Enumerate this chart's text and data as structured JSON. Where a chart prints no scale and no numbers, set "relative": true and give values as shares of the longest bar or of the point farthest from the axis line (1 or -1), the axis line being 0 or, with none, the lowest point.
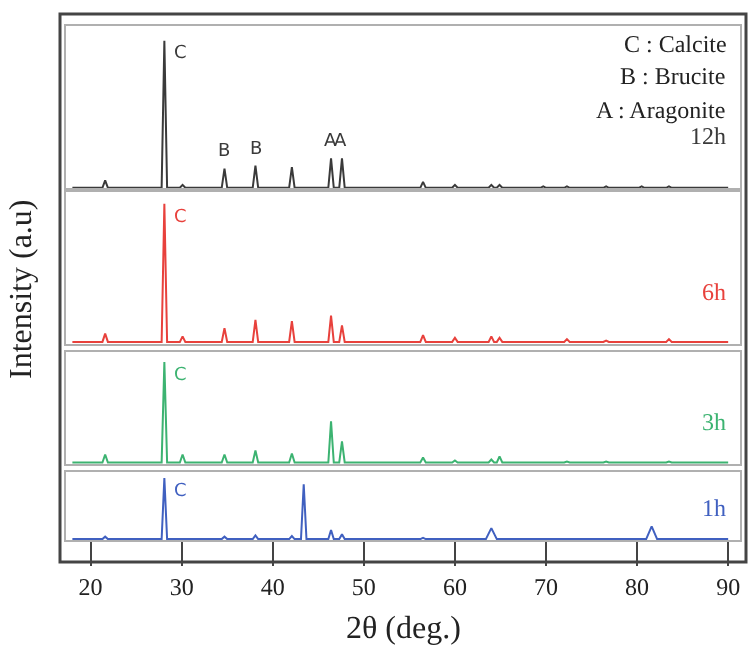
{
  "chart_data": [
    {
      "type": "line",
      "relative": true,
      "xlim": [
        17.3,
        91.3
      ],
      "tick_labels": false,
      "annotations": [
        "C : Calcite",
        "B : Brucite",
        "A : Aragonite",
        {
          "text": "C",
          "x": 28.1,
          "y": 1
        },
        {
          "text": "B",
          "x": 34.7,
          "y": 0.13
        },
        {
          "text": "B",
          "x": 38.1,
          "y": 0.15
        },
        {
          "text": "A",
          "x": 46.4,
          "y": 0.2
        },
        {
          "text": "A",
          "x": 47.6,
          "y": 0.2
        }
      ],
      "series": [
        {
          "name": "12h",
          "color": "#3a3a3a",
          "x": [
            18,
            21.3,
            21.6,
            21.9,
            27.8,
            28.1,
            28.4,
            29.8,
            30.1,
            30.4,
            34.4,
            34.7,
            35,
            37.8,
            38.1,
            38.4,
            41.8,
            42.1,
            42.4,
            46.1,
            46.4,
            46.7,
            47.3,
            47.6,
            47.9,
            56.2,
            56.5,
            56.8,
            59.7,
            60,
            60.3,
            63.7,
            64,
            64.3,
            64.6,
            64.9,
            65.2,
            69.4,
            69.7,
            70,
            72,
            72.3,
            72.6,
            76.3,
            76.6,
            76.9,
            80.2,
            80.5,
            80.8,
            83.2,
            83.5,
            83.8,
            90
          ],
          "values": [
            0,
            0,
            0.05,
            0,
            0,
            1,
            0,
            0,
            0.02,
            0,
            0,
            0.13,
            0,
            0,
            0.15,
            0,
            0,
            0.14,
            0,
            0,
            0.2,
            0,
            0,
            0.2,
            0,
            0,
            0.04,
            0,
            0,
            0.02,
            0,
            0,
            0.02,
            0,
            0,
            0.02,
            0,
            0,
            0.01,
            0,
            0,
            0.01,
            0,
            0,
            0.01,
            0,
            0,
            0.01,
            0,
            0,
            0.01,
            0,
            0
          ]
        }
      ]
    },
    {
      "type": "line",
      "relative": true,
      "xlim": [
        17.3,
        91.3
      ],
      "tick_labels": false,
      "ylabel": "Intensity (a.u)",
      "annotations": [
        {
          "text": "C",
          "x": 28.1,
          "y": 1
        }
      ],
      "series": [
        {
          "name": "6h",
          "color": "#e8413c",
          "x": [
            18,
            21.3,
            21.6,
            21.9,
            27.8,
            28.1,
            28.4,
            29.8,
            30.1,
            30.4,
            34.4,
            34.7,
            35,
            37.8,
            38.1,
            38.4,
            41.8,
            42.1,
            42.4,
            46.1,
            46.4,
            46.7,
            47.3,
            47.6,
            47.9,
            56.2,
            56.5,
            56.8,
            59.7,
            60,
            60.3,
            63.7,
            64,
            64.3,
            64.6,
            64.9,
            65.2,
            72,
            72.3,
            72.6,
            76.3,
            76.6,
            76.9,
            83.2,
            83.5,
            83.8,
            90
          ],
          "values": [
            0,
            0,
            0.06,
            0,
            0,
            1,
            0,
            0,
            0.04,
            0,
            0,
            0.1,
            0,
            0,
            0.16,
            0,
            0,
            0.15,
            0,
            0,
            0.19,
            0,
            0,
            0.12,
            0,
            0,
            0.05,
            0,
            0,
            0.03,
            0,
            0,
            0.04,
            0,
            0,
            0.03,
            0,
            0,
            0.02,
            0,
            0,
            0.01,
            0,
            0,
            0.02,
            0,
            0
          ]
        }
      ]
    },
    {
      "type": "line",
      "relative": true,
      "xlim": [
        17.3,
        91.3
      ],
      "tick_labels": false,
      "annotations": [
        {
          "text": "C",
          "x": 28.1,
          "y": 1
        }
      ],
      "series": [
        {
          "name": "3h",
          "color": "#3cb371",
          "x": [
            18,
            21.3,
            21.6,
            21.9,
            27.8,
            28.1,
            28.4,
            29.8,
            30.1,
            30.4,
            34.4,
            34.7,
            35,
            37.8,
            38.1,
            38.4,
            41.8,
            42.1,
            42.4,
            46.1,
            46.4,
            46.7,
            47.3,
            47.6,
            47.9,
            56.2,
            56.5,
            56.8,
            59.7,
            60,
            60.3,
            63.7,
            64,
            64.3,
            64.6,
            64.9,
            65.2,
            72,
            72.3,
            72.6,
            76.3,
            76.6,
            76.9,
            83.2,
            83.5,
            83.8,
            90
          ],
          "values": [
            0,
            0,
            0.08,
            0,
            0,
            1,
            0,
            0,
            0.08,
            0,
            0,
            0.08,
            0,
            0,
            0.12,
            0,
            0,
            0.09,
            0,
            0,
            0.41,
            0,
            0,
            0.21,
            0,
            0,
            0.05,
            0,
            0,
            0.02,
            0,
            0,
            0.03,
            0,
            0,
            0.06,
            0,
            0,
            0.01,
            0,
            0,
            0.01,
            0,
            0,
            0.01,
            0,
            0
          ]
        }
      ]
    },
    {
      "type": "line",
      "relative": true,
      "xlim": [
        17.3,
        91.3
      ],
      "xticks": [
        20,
        30,
        40,
        50,
        60,
        70,
        80,
        90
      ],
      "tick_labels": "x",
      "xlabel": "2θ (deg.)",
      "annotations": [
        {
          "text": "C",
          "x": 28.1,
          "y": 1
        }
      ],
      "series": [
        {
          "name": "1h",
          "color": "#4060c0",
          "x": [
            18,
            21.3,
            21.6,
            21.9,
            27.8,
            28.1,
            28.4,
            34.4,
            34.7,
            35,
            37.8,
            38.1,
            38.4,
            41.8,
            42.1,
            42.4,
            43.1,
            43.4,
            43.7,
            46.1,
            46.4,
            46.7,
            47.3,
            47.6,
            47.9,
            56.2,
            56.5,
            56.8,
            63.4,
            64,
            64.6,
            81,
            81.6,
            82.2,
            90
          ],
          "values": [
            0,
            0,
            0.04,
            0,
            0,
            1,
            0,
            0,
            0.04,
            0,
            0,
            0.06,
            0,
            0,
            0.05,
            0,
            0,
            0.9,
            0,
            0,
            0.15,
            0,
            0,
            0.08,
            0,
            0,
            0.02,
            0,
            0,
            0.18,
            0,
            0,
            0.21,
            0,
            0
          ]
        }
      ]
    }
  ]
}
